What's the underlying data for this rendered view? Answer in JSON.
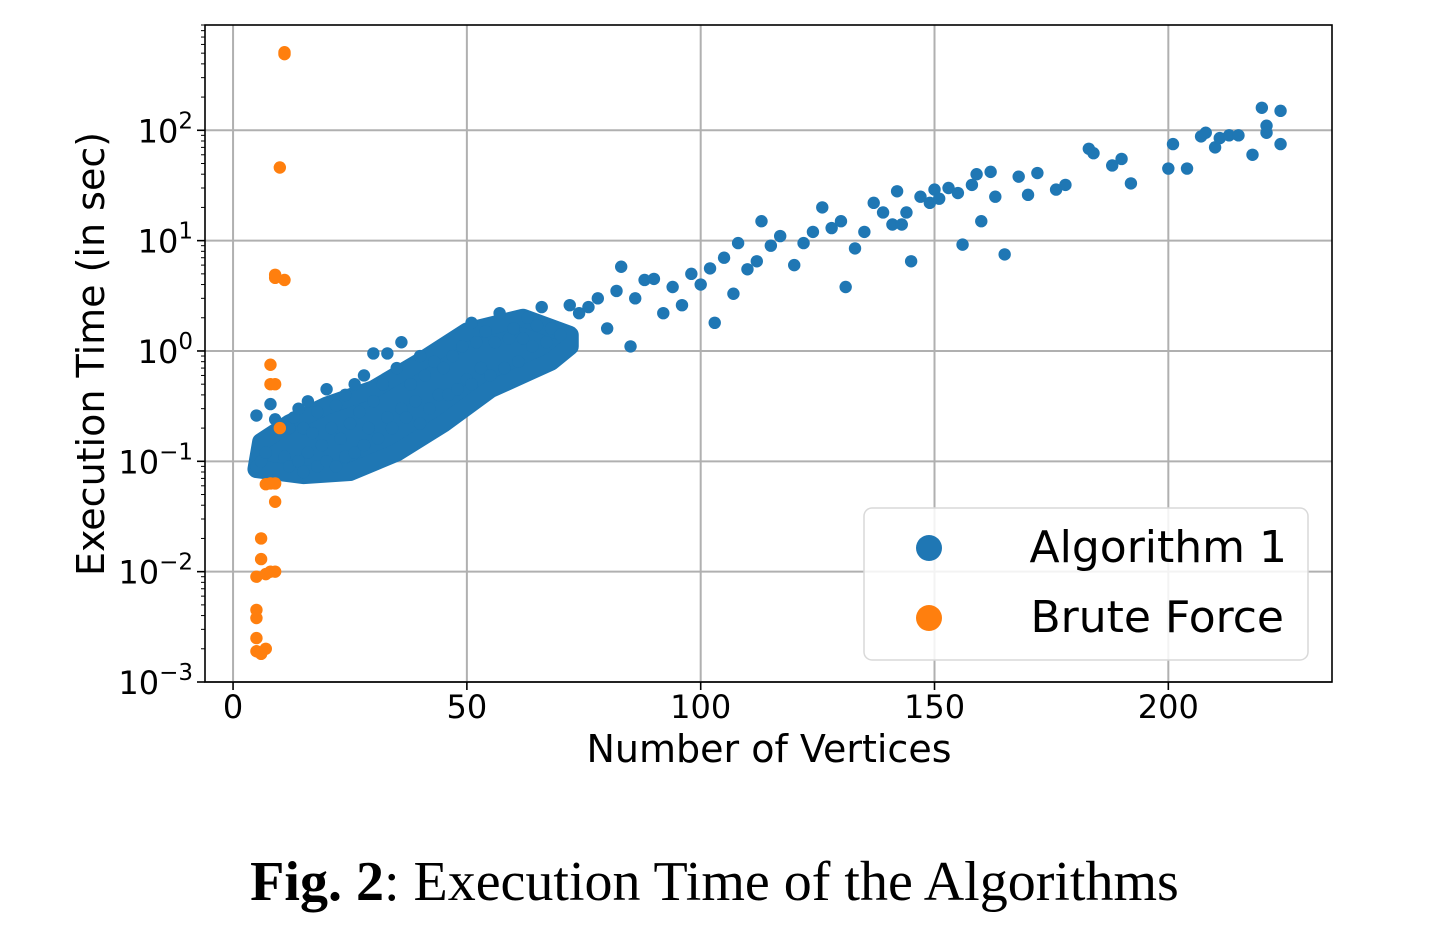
{
  "chart_data": {
    "type": "scatter",
    "xlabel": "Number of Vertices",
    "ylabel": "Execution Time (in sec)",
    "xlim": [
      -6,
      235
    ],
    "ylim": [
      0.001,
      900
    ],
    "yscale": "log",
    "grid": true,
    "legend_position": "bottom-right",
    "x_ticks": [
      0,
      50,
      100,
      150,
      200
    ],
    "x_tick_labels": [
      "0",
      "50",
      "100",
      "150",
      "200"
    ],
    "y_ticks": [
      0.001,
      0.01,
      0.1,
      1,
      10,
      100
    ],
    "y_tick_labels": [
      {
        "base": "10",
        "exp": "−3"
      },
      {
        "base": "10",
        "exp": "−2"
      },
      {
        "base": "10",
        "exp": "−1"
      },
      {
        "base": "10",
        "exp": "0"
      },
      {
        "base": "10",
        "exp": "1"
      },
      {
        "base": "10",
        "exp": "2"
      }
    ],
    "series": [
      {
        "name": "Algorithm 1",
        "color": "#1f77b4",
        "points": [
          [
            5,
            0.09
          ],
          [
            5,
            0.26
          ],
          [
            6,
            0.1
          ],
          [
            7,
            0.12
          ],
          [
            8,
            0.33
          ],
          [
            9,
            0.24
          ],
          [
            10,
            0.2
          ],
          [
            11,
            0.11
          ],
          [
            12,
            0.09
          ],
          [
            12,
            0.2
          ],
          [
            13,
            0.25
          ],
          [
            14,
            0.3
          ],
          [
            14,
            0.1
          ],
          [
            15,
            0.2
          ],
          [
            15,
            0.08
          ],
          [
            16,
            0.35
          ],
          [
            16,
            0.12
          ],
          [
            17,
            0.18
          ],
          [
            18,
            0.28
          ],
          [
            18,
            0.09
          ],
          [
            19,
            0.14
          ],
          [
            20,
            0.45
          ],
          [
            20,
            0.1
          ],
          [
            21,
            0.2
          ],
          [
            22,
            0.32
          ],
          [
            22,
            0.09
          ],
          [
            23,
            0.16
          ],
          [
            24,
            0.4
          ],
          [
            24,
            0.11
          ],
          [
            25,
            0.22
          ],
          [
            26,
            0.5
          ],
          [
            26,
            0.12
          ],
          [
            27,
            0.28
          ],
          [
            28,
            0.6
          ],
          [
            28,
            0.14
          ],
          [
            29,
            0.2
          ],
          [
            30,
            0.95
          ],
          [
            30,
            0.35
          ],
          [
            31,
            0.16
          ],
          [
            32,
            0.5
          ],
          [
            33,
            0.95
          ],
          [
            33,
            0.25
          ],
          [
            34,
            0.2
          ],
          [
            35,
            0.7
          ],
          [
            36,
            0.3
          ],
          [
            36,
            1.2
          ],
          [
            37,
            0.25
          ],
          [
            38,
            0.5
          ],
          [
            39,
            0.35
          ],
          [
            40,
            0.9
          ],
          [
            40,
            0.22
          ],
          [
            41,
            0.6
          ],
          [
            42,
            0.3
          ],
          [
            43,
            0.8
          ],
          [
            44,
            0.4
          ],
          [
            45,
            0.7
          ],
          [
            46,
            0.4
          ],
          [
            47,
            0.9
          ],
          [
            48,
            0.45
          ],
          [
            49,
            1.1
          ],
          [
            50,
            0.55
          ],
          [
            51,
            1.8
          ],
          [
            51,
            0.5
          ],
          [
            52,
            1.2
          ],
          [
            53,
            0.7
          ],
          [
            54,
            1.5
          ],
          [
            55,
            0.6
          ],
          [
            56,
            1.2
          ],
          [
            57,
            2.2
          ],
          [
            58,
            0.7
          ],
          [
            59,
            1.3
          ],
          [
            60,
            1.6
          ],
          [
            61,
            0.8
          ],
          [
            62,
            1.3
          ],
          [
            63,
            2.0
          ],
          [
            64,
            1.1
          ],
          [
            65,
            1.7
          ],
          [
            66,
            2.5
          ],
          [
            67,
            1.2
          ],
          [
            68,
            1.6
          ],
          [
            70,
            1.4
          ],
          [
            72,
            2.6
          ],
          [
            74,
            2.2
          ],
          [
            76,
            2.5
          ],
          [
            78,
            3.0
          ],
          [
            80,
            1.6
          ],
          [
            82,
            3.5
          ],
          [
            83,
            5.8
          ],
          [
            85,
            1.1
          ],
          [
            86,
            3.0
          ],
          [
            88,
            4.4
          ],
          [
            90,
            4.5
          ],
          [
            92,
            2.2
          ],
          [
            94,
            3.8
          ],
          [
            96,
            2.6
          ],
          [
            98,
            5.0
          ],
          [
            100,
            4.0
          ],
          [
            102,
            5.6
          ],
          [
            103,
            1.8
          ],
          [
            105,
            7.0
          ],
          [
            107,
            3.3
          ],
          [
            108,
            9.5
          ],
          [
            110,
            5.5
          ],
          [
            112,
            6.5
          ],
          [
            113,
            15
          ],
          [
            115,
            9.0
          ],
          [
            117,
            11
          ],
          [
            120,
            6.0
          ],
          [
            122,
            9.5
          ],
          [
            124,
            12
          ],
          [
            126,
            20
          ],
          [
            128,
            13
          ],
          [
            130,
            15
          ],
          [
            131,
            3.8
          ],
          [
            133,
            8.5
          ],
          [
            135,
            12
          ],
          [
            137,
            22
          ],
          [
            139,
            18
          ],
          [
            141,
            14
          ],
          [
            142,
            28
          ],
          [
            143,
            14
          ],
          [
            144,
            18
          ],
          [
            145,
            6.5
          ],
          [
            147,
            25
          ],
          [
            149,
            22
          ],
          [
            150,
            29
          ],
          [
            151,
            24
          ],
          [
            153,
            30
          ],
          [
            155,
            27
          ],
          [
            156,
            9.2
          ],
          [
            158,
            32
          ],
          [
            159,
            40
          ],
          [
            160,
            15
          ],
          [
            162,
            42
          ],
          [
            163,
            25
          ],
          [
            165,
            7.5
          ],
          [
            168,
            38
          ],
          [
            170,
            26
          ],
          [
            172,
            41
          ],
          [
            176,
            29
          ],
          [
            178,
            32
          ],
          [
            183,
            68
          ],
          [
            184,
            62
          ],
          [
            188,
            48
          ],
          [
            190,
            55
          ],
          [
            192,
            33
          ],
          [
            200,
            45
          ],
          [
            201,
            75
          ],
          [
            204,
            45
          ],
          [
            207,
            88
          ],
          [
            208,
            95
          ],
          [
            210,
            70
          ],
          [
            211,
            85
          ],
          [
            213,
            90
          ],
          [
            215,
            90
          ],
          [
            218,
            60
          ],
          [
            220,
            160
          ],
          [
            221,
            110
          ],
          [
            221,
            95
          ],
          [
            224,
            150
          ],
          [
            224,
            75
          ]
        ]
      },
      {
        "name": "Brute Force",
        "color": "#ff7f0e",
        "points": [
          [
            5,
            0.0019
          ],
          [
            5,
            0.0025
          ],
          [
            5,
            0.0038
          ],
          [
            5,
            0.0045
          ],
          [
            5,
            0.009
          ],
          [
            6,
            0.0018
          ],
          [
            6,
            0.013
          ],
          [
            6,
            0.02
          ],
          [
            7,
            0.002
          ],
          [
            7,
            0.0095
          ],
          [
            7,
            0.062
          ],
          [
            8,
            0.75
          ],
          [
            8,
            0.5
          ],
          [
            8,
            0.063
          ],
          [
            8,
            0.01
          ],
          [
            9,
            0.5
          ],
          [
            9,
            0.043
          ],
          [
            9,
            0.063
          ],
          [
            9,
            0.01
          ],
          [
            9,
            4.6
          ],
          [
            9,
            4.9
          ],
          [
            10,
            46
          ],
          [
            10,
            0.2
          ],
          [
            11,
            4.4
          ],
          [
            11,
            490
          ],
          [
            11,
            510
          ]
        ]
      }
    ]
  },
  "caption": {
    "label": "Fig. 2",
    "text": ": Execution Time of the Algorithms"
  }
}
